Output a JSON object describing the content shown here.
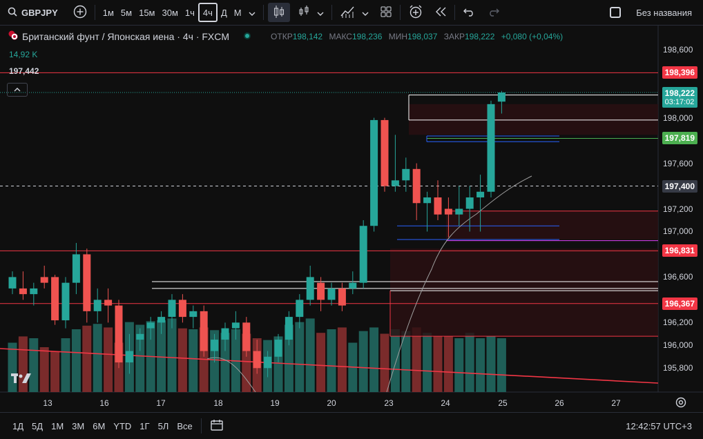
{
  "toolbar": {
    "symbol": "GBPJPY",
    "timeframes": [
      "1м",
      "5м",
      "15м",
      "30м",
      "1ч",
      "4ч",
      "Д",
      "М"
    ],
    "active_timeframe": "4ч",
    "layout_name": "Без названия"
  },
  "legend": {
    "title": "Британский фунт / Японская иена · 4ч · FXCM",
    "open_label": "ОТКР",
    "open": "198,142",
    "high_label": "МАКС",
    "high": "198,236",
    "low_label": "МИН",
    "low": "198,037",
    "close_label": "ЗАКР",
    "close": "198,222",
    "change": "+0,080 (+0,04%)",
    "volume": "14,92 K",
    "ma_value": "197,442"
  },
  "price_axis": {
    "ticks": [
      "198,600",
      "198,000",
      "197,600",
      "197,400",
      "197,200",
      "197,000",
      "196,600",
      "196,200",
      "196,000",
      "195,800"
    ],
    "labels": [
      {
        "text": "198,396",
        "color": "#f23645"
      },
      {
        "text": "197,819",
        "color": "#4caf50"
      },
      {
        "text": "196,831",
        "color": "#f23645"
      },
      {
        "text": "196,367",
        "color": "#f23645"
      }
    ],
    "current_price": "198,222",
    "countdown": "03:17:02",
    "crosshair_price": "197,400"
  },
  "time_axis": [
    "13",
    "16",
    "17",
    "18",
    "19",
    "20",
    "23",
    "24",
    "25",
    "26",
    "27"
  ],
  "bottombar": {
    "ranges": [
      "1Д",
      "5Д",
      "1М",
      "3М",
      "6М",
      "YTD",
      "1Г",
      "5Л",
      "Все"
    ],
    "clock": "12:42:57 UTC+3"
  },
  "chart_data": {
    "type": "candlestick",
    "symbol": "GBPJPY",
    "interval": "4h",
    "up_color": "#26a69a",
    "down_color": "#ef5350",
    "ylim": [
      195.65,
      198.75
    ],
    "candles": [
      {
        "o": 196.5,
        "h": 196.65,
        "l": 196.45,
        "c": 196.6
      },
      {
        "o": 196.5,
        "h": 196.65,
        "l": 196.4,
        "c": 196.45
      },
      {
        "o": 196.45,
        "h": 196.55,
        "l": 196.35,
        "c": 196.5
      },
      {
        "o": 196.6,
        "h": 196.7,
        "l": 196.5,
        "c": 196.55
      },
      {
        "o": 196.6,
        "h": 196.62,
        "l": 196.18,
        "c": 196.22
      },
      {
        "o": 196.22,
        "h": 196.6,
        "l": 196.15,
        "c": 196.55
      },
      {
        "o": 196.55,
        "h": 196.9,
        "l": 196.45,
        "c": 196.8
      },
      {
        "o": 196.8,
        "h": 196.85,
        "l": 196.2,
        "c": 196.3
      },
      {
        "o": 196.3,
        "h": 196.5,
        "l": 196.2,
        "c": 196.4
      },
      {
        "o": 196.4,
        "h": 196.5,
        "l": 196.2,
        "c": 196.35
      },
      {
        "o": 196.35,
        "h": 196.4,
        "l": 195.8,
        "c": 195.85
      },
      {
        "o": 195.85,
        "h": 196.1,
        "l": 195.75,
        "c": 195.95
      },
      {
        "o": 196.05,
        "h": 196.15,
        "l": 195.95,
        "c": 196.1
      },
      {
        "o": 196.15,
        "h": 196.25,
        "l": 196.05,
        "c": 196.2
      },
      {
        "o": 196.2,
        "h": 196.3,
        "l": 196.1,
        "c": 196.25
      },
      {
        "o": 196.25,
        "h": 196.45,
        "l": 196.15,
        "c": 196.4
      },
      {
        "o": 196.4,
        "h": 196.45,
        "l": 196.2,
        "c": 196.25
      },
      {
        "o": 196.25,
        "h": 196.35,
        "l": 196.15,
        "c": 196.3
      },
      {
        "o": 196.3,
        "h": 196.35,
        "l": 195.9,
        "c": 195.95
      },
      {
        "o": 195.95,
        "h": 196.1,
        "l": 195.85,
        "c": 196.05
      },
      {
        "o": 196.05,
        "h": 196.2,
        "l": 195.95,
        "c": 196.15
      },
      {
        "o": 196.15,
        "h": 196.3,
        "l": 196.05,
        "c": 196.2
      },
      {
        "o": 196.2,
        "h": 196.25,
        "l": 195.9,
        "c": 195.95
      },
      {
        "o": 195.95,
        "h": 196.05,
        "l": 195.75,
        "c": 195.8
      },
      {
        "o": 195.8,
        "h": 195.95,
        "l": 195.72,
        "c": 195.9
      },
      {
        "o": 195.9,
        "h": 196.1,
        "l": 195.85,
        "c": 196.05
      },
      {
        "o": 196.05,
        "h": 196.3,
        "l": 196.0,
        "c": 196.25
      },
      {
        "o": 196.25,
        "h": 196.45,
        "l": 196.15,
        "c": 196.4
      },
      {
        "o": 196.4,
        "h": 196.7,
        "l": 196.35,
        "c": 196.6
      },
      {
        "o": 196.55,
        "h": 196.6,
        "l": 196.3,
        "c": 196.4
      },
      {
        "o": 196.4,
        "h": 196.55,
        "l": 196.35,
        "c": 196.5
      },
      {
        "o": 196.5,
        "h": 196.55,
        "l": 196.3,
        "c": 196.35
      },
      {
        "o": 196.5,
        "h": 196.65,
        "l": 196.45,
        "c": 196.55
      },
      {
        "o": 196.55,
        "h": 197.1,
        "l": 196.5,
        "c": 197.05
      },
      {
        "o": 197.05,
        "h": 198.0,
        "l": 197.0,
        "c": 197.98
      },
      {
        "o": 197.98,
        "h": 198.0,
        "l": 197.35,
        "c": 197.4
      },
      {
        "o": 197.4,
        "h": 197.85,
        "l": 197.35,
        "c": 197.45
      },
      {
        "o": 197.45,
        "h": 197.65,
        "l": 197.35,
        "c": 197.55
      },
      {
        "o": 197.55,
        "h": 197.6,
        "l": 197.1,
        "c": 197.25
      },
      {
        "o": 197.25,
        "h": 197.35,
        "l": 197.0,
        "c": 197.3
      },
      {
        "o": 197.3,
        "h": 197.45,
        "l": 197.1,
        "c": 197.15
      },
      {
        "o": 197.2,
        "h": 197.3,
        "l": 196.95,
        "c": 197.15
      },
      {
        "o": 197.15,
        "h": 197.4,
        "l": 197.05,
        "c": 197.2
      },
      {
        "o": 197.2,
        "h": 197.4,
        "l": 197.0,
        "c": 197.3
      },
      {
        "o": 197.3,
        "h": 197.5,
        "l": 197.0,
        "c": 197.35
      },
      {
        "o": 197.35,
        "h": 198.15,
        "l": 197.3,
        "c": 198.12
      },
      {
        "o": 198.142,
        "h": 198.236,
        "l": 198.037,
        "c": 198.222
      }
    ],
    "volume": [
      0.55,
      0.62,
      0.6,
      0.5,
      0.45,
      0.6,
      0.7,
      0.74,
      0.76,
      0.72,
      0.55,
      0.78,
      0.75,
      0.79,
      0.8,
      0.82,
      0.71,
      0.7,
      0.72,
      0.69,
      0.66,
      0.7,
      0.65,
      0.6,
      0.58,
      0.62,
      0.75,
      0.78,
      0.82,
      0.66,
      0.7,
      0.72,
      0.55,
      0.68,
      0.72,
      0.65,
      0.7,
      0.68,
      0.72,
      0.66,
      0.62,
      0.62,
      0.6,
      0.66,
      0.6,
      0.62,
      0.6
    ]
  }
}
